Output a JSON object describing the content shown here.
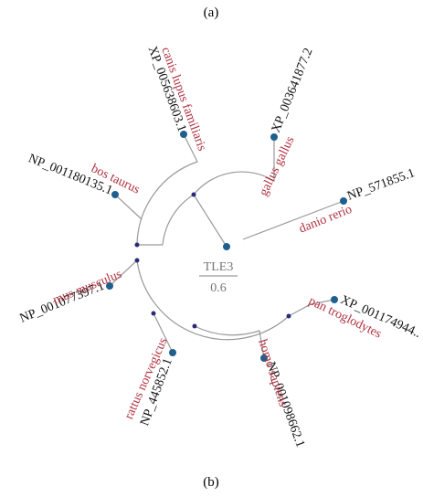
{
  "panel_labels": [
    "(a)",
    "(b)"
  ],
  "tree": {
    "title": "TLE3",
    "scale": "0.6",
    "leaves": [
      {
        "accession": "XP_005638603.1",
        "species": "canis lupus familiaris"
      },
      {
        "accession": "XP_003641877.2",
        "species": "gallus gallus"
      },
      {
        "accession": "NP_571855.1",
        "species": "danio rerio"
      },
      {
        "accession": "NP_001180135.1",
        "species": "bos taurus"
      },
      {
        "accession": "NP_001077397.1",
        "species": "mus musculus"
      },
      {
        "accession": "NP_445852.1",
        "species": "rattus norvegicus"
      },
      {
        "accession": "NP_001098662.1",
        "species": "homo sapiens"
      },
      {
        "accession": "XP_001174944..",
        "species": "pan troglodytes"
      }
    ]
  }
}
